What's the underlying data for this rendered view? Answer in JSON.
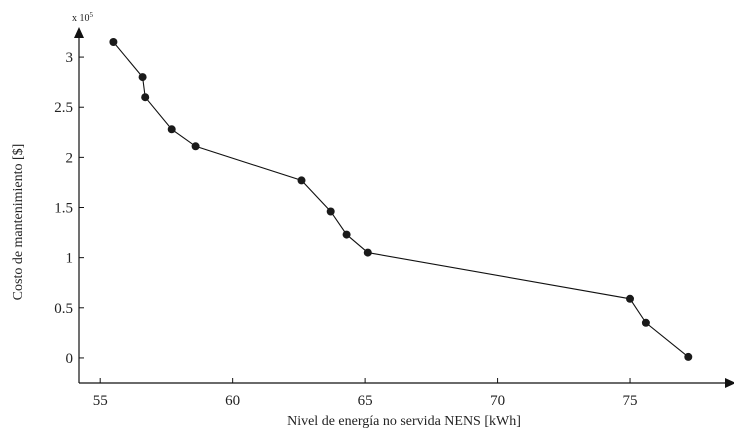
{
  "chart_data": {
    "type": "line",
    "title": "",
    "xlabel": "Nivel de energía no servida NENS [kWh]",
    "ylabel": "Costo de mantenimiento [$]",
    "y_multiplier": "x 10",
    "y_multiplier_exponent": "5",
    "xlim": [
      54.2,
      79.0
    ],
    "ylim": [
      -0.25,
      3.3
    ],
    "xticks": [
      55,
      60,
      65,
      70,
      75
    ],
    "xtick_labels": [
      "55",
      "60",
      "65",
      "70",
      "75"
    ],
    "yticks": [
      0,
      0.5,
      1,
      1.5,
      2,
      2.5,
      3
    ],
    "ytick_labels": [
      "0",
      "0.5",
      "1",
      "1.5",
      "2",
      "2.5",
      "3"
    ],
    "grid": false,
    "series": [
      {
        "x": [
          55.5,
          56.6,
          56.7,
          57.7,
          58.6,
          62.6,
          63.7,
          64.3,
          65.1,
          75.0,
          75.6,
          77.2
        ],
        "y": [
          3.15,
          2.8,
          2.6,
          2.28,
          2.11,
          1.77,
          1.46,
          1.23,
          1.05,
          0.59,
          0.35,
          0.01
        ]
      }
    ]
  }
}
